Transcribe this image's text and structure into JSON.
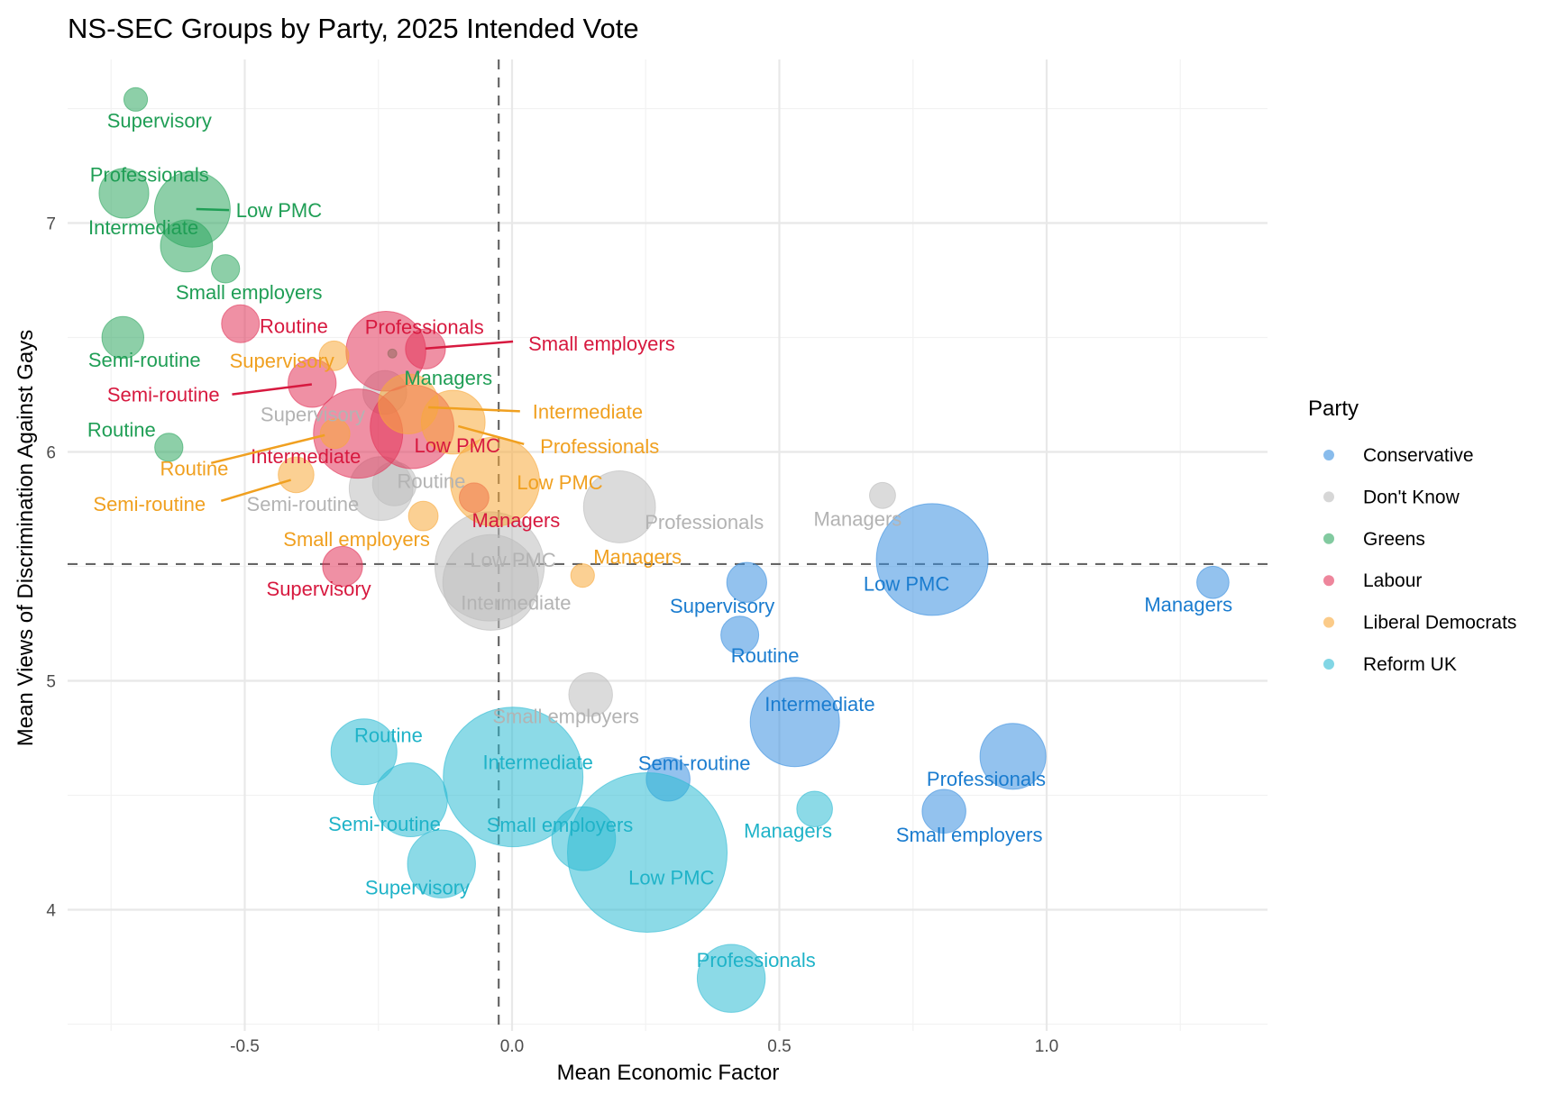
{
  "chart_data": {
    "type": "scatter",
    "subtype": "bubble",
    "title": "NS-SEC Groups by Party, 2025 Intended Vote",
    "xlabel": "Mean Economic Factor",
    "ylabel": "Mean Views of Discrimination Against Gays",
    "xlim": [
      -0.83,
      1.41
    ],
    "ylim": [
      3.47,
      7.71
    ],
    "xticks": [
      -0.5,
      0.0,
      0.5,
      1.0
    ],
    "xtick_labels": [
      "-0.5",
      "0.0",
      "0.5",
      "1.0"
    ],
    "yticks": [
      4,
      5,
      6,
      7
    ],
    "ytick_labels": [
      "4",
      "5",
      "6",
      "7"
    ],
    "grid": true,
    "reference_lines": {
      "x": -0.025,
      "y": 5.51,
      "style": "dashed"
    },
    "legend": {
      "title": "Party",
      "position": "right"
    },
    "series": [
      {
        "name": "Conservative",
        "color": "#3b8fe0",
        "label_color": "#1a7ccf",
        "points": [
          {
            "label": "Low PMC",
            "x": 0.786,
            "y": 5.53,
            "size": 314
          },
          {
            "label": "Managers",
            "x": 1.311,
            "y": 5.43,
            "size": 26
          },
          {
            "label": "Supervisory",
            "x": 0.439,
            "y": 5.43,
            "size": 40
          },
          {
            "label": "Routine",
            "x": 0.426,
            "y": 5.2,
            "size": 36
          },
          {
            "label": "Intermediate",
            "x": 0.529,
            "y": 4.82,
            "size": 200
          },
          {
            "label": "Professionals",
            "x": 0.937,
            "y": 4.67,
            "size": 109
          },
          {
            "label": "Semi-routine",
            "x": 0.292,
            "y": 4.57,
            "size": 48
          },
          {
            "label": "Small employers",
            "x": 0.808,
            "y": 4.43,
            "size": 48
          }
        ]
      },
      {
        "name": "Don't Know",
        "color": "#bdbdbd",
        "label_color": "#b3b3b3",
        "points": [
          {
            "label": "Supervisory",
            "x": -0.238,
            "y": 6.26,
            "size": 48
          },
          {
            "label": "Routine",
            "x": -0.22,
            "y": 5.86,
            "size": 48
          },
          {
            "label": "Semi-routine",
            "x": -0.245,
            "y": 5.84,
            "size": 102
          },
          {
            "label": "Professionals",
            "x": 0.201,
            "y": 5.76,
            "size": 130
          },
          {
            "label": "Managers",
            "x": 0.693,
            "y": 5.81,
            "size": 17
          },
          {
            "label": "Low PMC",
            "x": -0.042,
            "y": 5.5,
            "size": 300
          },
          {
            "label": "Intermediate",
            "x": -0.04,
            "y": 5.43,
            "size": 230
          },
          {
            "label": "Small employers",
            "x": 0.147,
            "y": 4.94,
            "size": 48
          }
        ]
      },
      {
        "name": "Greens",
        "color": "#2fa760",
        "label_color": "#1f9e55",
        "points": [
          {
            "label": "Supervisory",
            "x": -0.704,
            "y": 7.54,
            "size": 14
          },
          {
            "label": "Professionals",
            "x": -0.726,
            "y": 7.13,
            "size": 62
          },
          {
            "label": "Low PMC",
            "x": -0.598,
            "y": 7.06,
            "size": 144
          },
          {
            "label": "Intermediate",
            "x": -0.609,
            "y": 6.9,
            "size": 68
          },
          {
            "label": "Small employers",
            "x": -0.536,
            "y": 6.8,
            "size": 20
          },
          {
            "label": "Semi-routine",
            "x": -0.728,
            "y": 6.5,
            "size": 44
          },
          {
            "label": "Routine",
            "x": -0.642,
            "y": 6.02,
            "size": 20
          },
          {
            "label": "Managers",
            "x": -0.224,
            "y": 6.43,
            "size": 2
          }
        ]
      },
      {
        "name": "Labour",
        "color": "#e2355a",
        "label_color": "#d7193f",
        "points": [
          {
            "label": "Routine",
            "x": -0.508,
            "y": 6.56,
            "size": 36
          },
          {
            "label": "Professionals",
            "x": -0.236,
            "y": 6.44,
            "size": 160
          },
          {
            "label": "Small employers",
            "x": -0.162,
            "y": 6.45,
            "size": 40
          },
          {
            "label": "Semi-routine",
            "x": -0.374,
            "y": 6.3,
            "size": 58
          },
          {
            "label": "Intermediate",
            "x": -0.288,
            "y": 6.08,
            "size": 200
          },
          {
            "label": "Low PMC",
            "x": -0.187,
            "y": 6.11,
            "size": 176
          },
          {
            "label": "Managers",
            "x": -0.071,
            "y": 5.8,
            "size": 22
          },
          {
            "label": "Supervisory",
            "x": -0.317,
            "y": 5.5,
            "size": 40
          }
        ]
      },
      {
        "name": "Liberal Democrats",
        "color": "#f8a93a",
        "label_color": "#f0a020",
        "points": [
          {
            "label": "Supervisory",
            "x": -0.333,
            "y": 6.42,
            "size": 22
          },
          {
            "label": "Intermediate",
            "x": -0.194,
            "y": 6.21,
            "size": 90
          },
          {
            "label": "Professionals",
            "x": -0.11,
            "y": 6.13,
            "size": 102
          },
          {
            "label": "Routine",
            "x": -0.331,
            "y": 6.08,
            "size": 22
          },
          {
            "label": "Semi-routine",
            "x": -0.404,
            "y": 5.9,
            "size": 32
          },
          {
            "label": "Low PMC",
            "x": -0.032,
            "y": 5.87,
            "size": 200
          },
          {
            "label": "Small employers",
            "x": -0.166,
            "y": 5.72,
            "size": 22
          },
          {
            "label": "Managers",
            "x": 0.132,
            "y": 5.46,
            "size": 14
          }
        ]
      },
      {
        "name": "Reform UK",
        "color": "#2ebbd3",
        "label_color": "#1fb3c8",
        "points": [
          {
            "label": "Routine",
            "x": -0.277,
            "y": 4.69,
            "size": 109
          },
          {
            "label": "Semi-routine",
            "x": -0.19,
            "y": 4.48,
            "size": 137
          },
          {
            "label": "Intermediate",
            "x": 0.002,
            "y": 4.58,
            "size": 490
          },
          {
            "label": "Small employers",
            "x": 0.134,
            "y": 4.31,
            "size": 102
          },
          {
            "label": "Supervisory",
            "x": -0.132,
            "y": 4.2,
            "size": 116
          },
          {
            "label": "Low PMC",
            "x": 0.253,
            "y": 4.25,
            "size": 640
          },
          {
            "label": "Managers",
            "x": 0.566,
            "y": 4.44,
            "size": 32
          },
          {
            "label": "Professionals",
            "x": 0.41,
            "y": 3.7,
            "size": 116
          }
        ]
      }
    ]
  }
}
